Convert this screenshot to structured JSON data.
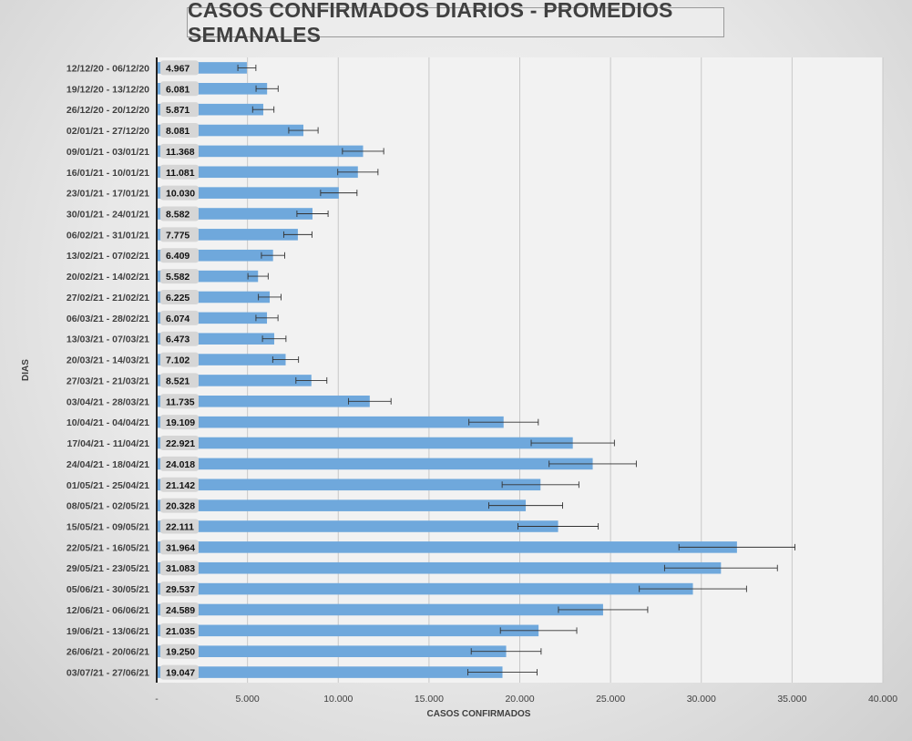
{
  "chart_data": {
    "type": "bar",
    "orientation": "horizontal",
    "title": "CASOS CONFIRMADOS DIARIOS - PROMEDIOS SEMANALES",
    "xlabel": "CASOS CONFIRMADOS",
    "ylabel": "DIAS",
    "xlim": [
      0,
      40000
    ],
    "x_ticks": [
      0,
      5000,
      10000,
      15000,
      20000,
      25000,
      30000,
      35000,
      40000
    ],
    "x_tick_labels": [
      "-",
      "5.000",
      "10.000",
      "15.000",
      "20.000",
      "25.000",
      "30.000",
      "35.000",
      "40.000"
    ],
    "grid": "vertical",
    "bar_color": "#6fa8dc",
    "categories": [
      "12/12/20 - 06/12/20",
      "19/12/20 - 13/12/20",
      "26/12/20 - 20/12/20",
      "02/01/21 - 27/12/20",
      "09/01/21 - 03/01/21",
      "16/01/21 - 10/01/21",
      "23/01/21 - 17/01/21",
      "30/01/21 - 24/01/21",
      "06/02/21 - 31/01/21",
      "13/02/21 - 07/02/21",
      "20/02/21 - 14/02/21",
      "27/02/21 - 21/02/21",
      "06/03/21 - 28/02/21",
      "13/03/21 - 07/03/21",
      "20/03/21 - 14/03/21",
      "27/03/21 - 21/03/21",
      "03/04/21 - 28/03/21",
      "10/04/21 - 04/04/21",
      "17/04/21 - 11/04/21",
      "24/04/21 - 18/04/21",
      "01/05/21 - 25/04/21",
      "08/05/21 - 02/05/21",
      "15/05/21 - 09/05/21",
      "22/05/21 - 16/05/21",
      "29/05/21 - 23/05/21",
      "05/06/21 - 30/05/21",
      "12/06/21 - 06/06/21",
      "19/06/21 - 13/06/21",
      "26/06/21 - 20/06/21",
      "03/07/21 - 27/06/21"
    ],
    "values": [
      4967,
      6081,
      5871,
      8081,
      11368,
      11081,
      10030,
      8582,
      7775,
      6409,
      5582,
      6225,
      6074,
      6473,
      7102,
      8521,
      11735,
      19109,
      22921,
      24018,
      21142,
      20328,
      22111,
      31964,
      31083,
      29537,
      24589,
      21035,
      19250,
      19047
    ],
    "value_labels": [
      "4.967",
      "6.081",
      "5.871",
      "8.081",
      "11.368",
      "11.081",
      "10.030",
      "8.582",
      "7.775",
      "6.409",
      "5.582",
      "6.225",
      "6.074",
      "6.473",
      "7.102",
      "8.521",
      "11.735",
      "19.109",
      "22.921",
      "24.018",
      "21.142",
      "20.328",
      "22.111",
      "31.964",
      "31.083",
      "29.537",
      "24.589",
      "21.035",
      "19.250",
      "19.047"
    ],
    "error_bars_pct": 10
  }
}
